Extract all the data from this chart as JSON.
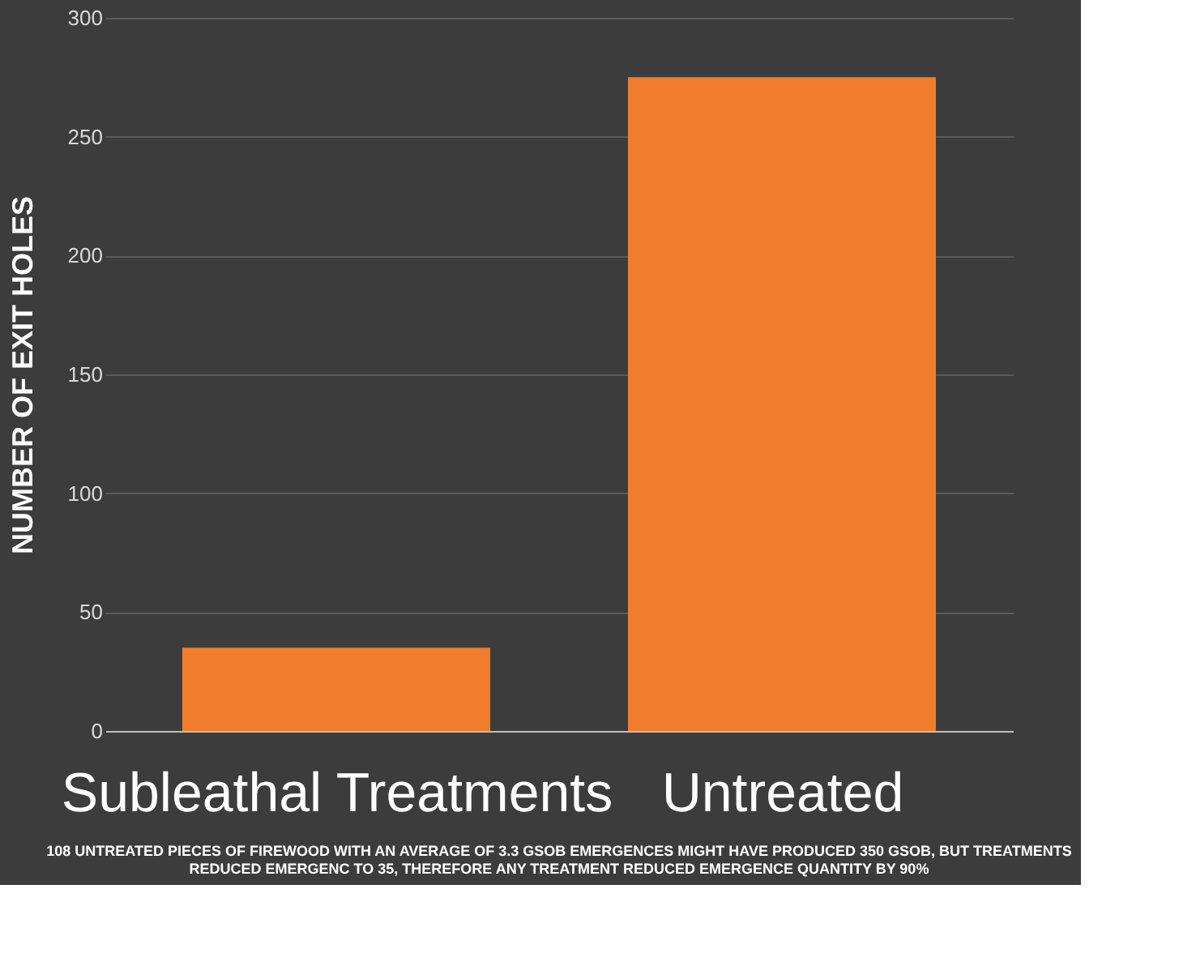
{
  "chart_data": {
    "type": "bar",
    "categories": [
      "Subleathal Treatments",
      "Untreated"
    ],
    "values": [
      35,
      275
    ],
    "color": "#f07d2c",
    "ylabel": "NUMBER OF EXIT HOLES",
    "ylim": [
      0,
      300
    ],
    "yticks": [
      0,
      50,
      100,
      150,
      200,
      250,
      300
    ],
    "grid": "y",
    "annotations": [
      "108 UNTREATED PIECES OF FIREWOOD WITH AN AVERAGE OF 3.3 GSOB EMERGENCES MIGHT HAVE PRODUCED 350 GSOB, BUT TREATMENTS REDUCED EMERGENC TO 35, THEREFORE ANY TREATMENT REDUCED EMERGENCE QUANTITY BY 90%"
    ]
  }
}
